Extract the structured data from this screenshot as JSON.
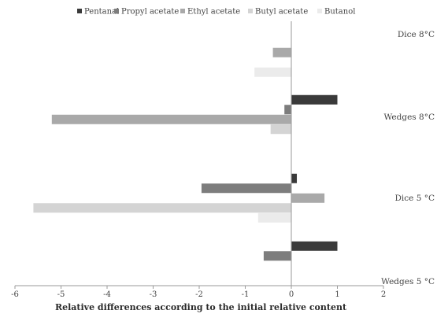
{
  "chart_data": {
    "type": "bar",
    "orientation": "horizontal",
    "title": "",
    "xlabel": "Relative differences according to the initial relative content",
    "ylabel": "",
    "xlim": [
      -6,
      2
    ],
    "x_ticks": [
      -6,
      -5,
      -4,
      -3,
      -2,
      -1,
      0,
      1,
      2
    ],
    "grid": false,
    "legend_position": "top",
    "categories": [
      "Dice 8°C",
      "Wedges 8°C",
      "Dice 5 °C",
      "Wedges 5 °C"
    ],
    "series": [
      {
        "name": "Pentanal",
        "color": "#3a3a3a",
        "values": [
          null,
          1.0,
          0.12,
          1.0
        ]
      },
      {
        "name": "Propyl acetate",
        "color": "#7d7d7d",
        "values": [
          null,
          -0.15,
          -1.95,
          -0.6
        ]
      },
      {
        "name": "Ethyl acetate",
        "color": "#a9a9a9",
        "values": [
          -0.4,
          -5.2,
          0.72,
          null
        ]
      },
      {
        "name": "Butyl acetate",
        "color": "#d4d4d4",
        "values": [
          null,
          -0.45,
          -5.6,
          null
        ]
      },
      {
        "name": "Butanol",
        "color": "#ebebeb",
        "values": [
          -0.8,
          null,
          -0.72,
          null
        ]
      }
    ]
  }
}
